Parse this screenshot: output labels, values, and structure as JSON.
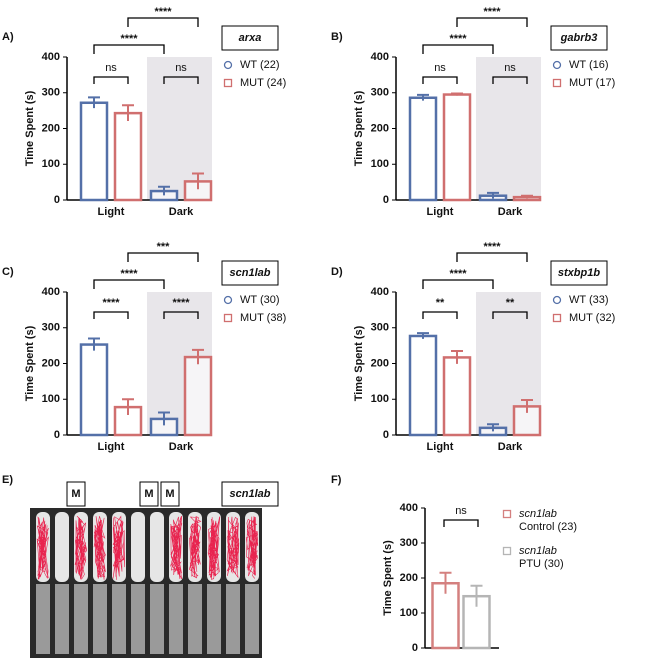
{
  "chart_data": [
    {
      "type": "bar",
      "panel": "A)",
      "gene": "arxa",
      "ylabel": "Time Spent (s)",
      "categories": [
        "Light",
        "Dark"
      ],
      "ylim": [
        0,
        400
      ],
      "yticks": [
        0,
        100,
        200,
        300,
        400
      ],
      "shade_dark": true,
      "series": [
        {
          "name": "WT (22)",
          "marker": "circle",
          "color": "#5470a8",
          "values": [
            272,
            25
          ],
          "errors": [
            15,
            12
          ]
        },
        {
          "name": "MUT (24)",
          "marker": "square",
          "color": "#d06f6f",
          "values": [
            243,
            52
          ],
          "errors": [
            22,
            22
          ]
        }
      ],
      "within": [
        "ns",
        "ns"
      ],
      "across": [
        "****",
        "****"
      ]
    },
    {
      "type": "bar",
      "panel": "B)",
      "gene": "gabrb3",
      "ylabel": "Time Spent (s)",
      "categories": [
        "Light",
        "Dark"
      ],
      "ylim": [
        0,
        400
      ],
      "yticks": [
        0,
        100,
        200,
        300,
        400
      ],
      "shade_dark": true,
      "series": [
        {
          "name": "WT (16)",
          "marker": "circle",
          "color": "#5470a8",
          "values": [
            286,
            12
          ],
          "errors": [
            8,
            8
          ]
        },
        {
          "name": "MUT (17)",
          "marker": "square",
          "color": "#d06f6f",
          "values": [
            295,
            8
          ],
          "errors": [
            3,
            4
          ]
        }
      ],
      "within": [
        "ns",
        "ns"
      ],
      "across": [
        "****",
        "****"
      ]
    },
    {
      "type": "bar",
      "panel": "C)",
      "gene": "scn1lab",
      "ylabel": "Time Spent (s)",
      "categories": [
        "Light",
        "Dark"
      ],
      "ylim": [
        0,
        400
      ],
      "yticks": [
        0,
        100,
        200,
        300,
        400
      ],
      "shade_dark": true,
      "series": [
        {
          "name": "WT (30)",
          "marker": "circle",
          "color": "#5470a8",
          "values": [
            253,
            45
          ],
          "errors": [
            17,
            18
          ]
        },
        {
          "name": "MUT (38)",
          "marker": "square",
          "color": "#d06f6f",
          "values": [
            78,
            218
          ],
          "errors": [
            22,
            20
          ]
        }
      ],
      "within": [
        "****",
        "****"
      ],
      "across": [
        "****",
        "***"
      ]
    },
    {
      "type": "bar",
      "panel": "D)",
      "gene": "stxbp1b",
      "ylabel": "Time Spent (s)",
      "categories": [
        "Light",
        "Dark"
      ],
      "ylim": [
        0,
        400
      ],
      "yticks": [
        0,
        100,
        200,
        300,
        400
      ],
      "shade_dark": true,
      "series": [
        {
          "name": "WT (33)",
          "marker": "circle",
          "color": "#5470a8",
          "values": [
            277,
            20
          ],
          "errors": [
            8,
            10
          ]
        },
        {
          "name": "MUT (32)",
          "marker": "square",
          "color": "#d06f6f",
          "values": [
            217,
            80
          ],
          "errors": [
            18,
            18
          ]
        }
      ],
      "within": [
        "**",
        "**"
      ],
      "across": [
        "****",
        "****"
      ]
    },
    {
      "type": "bar",
      "panel": "F)",
      "ylabel": "Time Spent (s)",
      "categories": [
        null
      ],
      "ylim": [
        0,
        400
      ],
      "yticks": [
        0,
        100,
        200,
        300,
        400
      ],
      "shade_dark": false,
      "series": [
        {
          "name": "scn1lab",
          "note": "Control (23)",
          "marker": "square",
          "color": "#d4807f",
          "values": [
            185
          ],
          "errors": [
            30
          ]
        },
        {
          "name": "scn1lab",
          "note": "PTU (30)",
          "marker": "square",
          "color": "#b5b5b5",
          "values": [
            148
          ],
          "errors": [
            30
          ]
        }
      ],
      "within": [
        "ns"
      ]
    }
  ],
  "panel_e": {
    "label": "E)",
    "gene": "scn1lab",
    "markers": [
      "M",
      "M",
      "M"
    ]
  }
}
